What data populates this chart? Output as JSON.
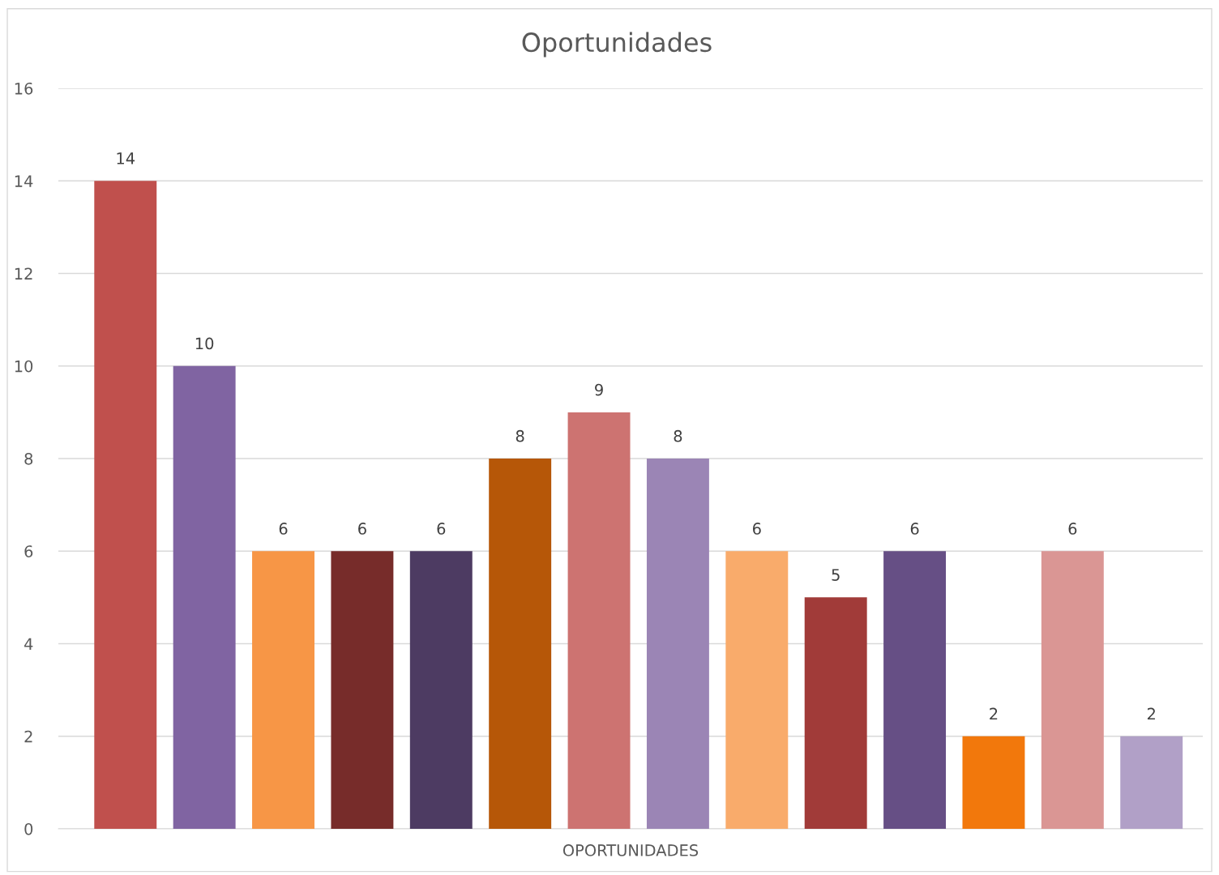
{
  "chart_data": {
    "type": "bar",
    "title": "Oportunidades",
    "xlabel": "OPORTUNIDADES",
    "categories": [
      null,
      null,
      null,
      null,
      null,
      null,
      null,
      null,
      null,
      null,
      null,
      null,
      null,
      null
    ],
    "values": [
      14,
      10,
      6,
      6,
      6,
      8,
      9,
      8,
      6,
      5,
      6,
      2,
      6,
      2
    ],
    "colors": [
      "#c0504d",
      "#8064a2",
      "#f79646",
      "#772c2a",
      "#4d3b62",
      "#b65708",
      "#cd7371",
      "#9b85b5",
      "#f9ab6b",
      "#a13b39",
      "#664f85",
      "#f2780c",
      "#da9694",
      "#b1a0c7"
    ],
    "ylim": [
      0,
      16
    ],
    "yticks": [
      0,
      2,
      4,
      6,
      8,
      10,
      12,
      14,
      16
    ],
    "grid": "y",
    "data_labels": true
  }
}
